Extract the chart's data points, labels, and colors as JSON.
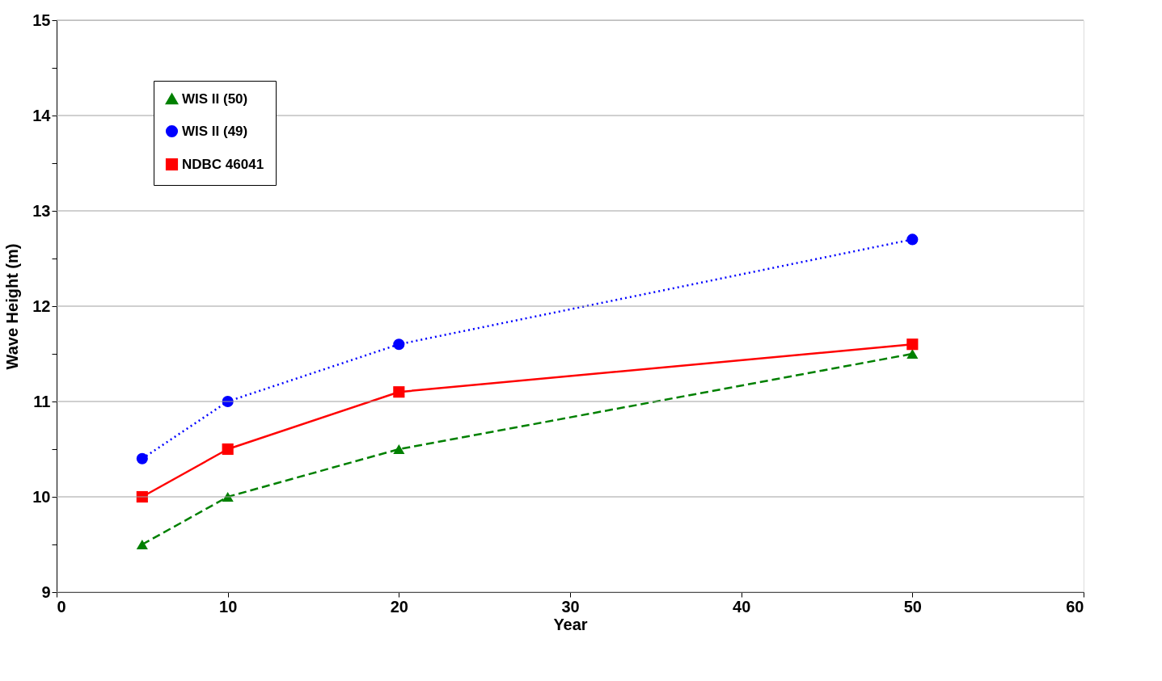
{
  "chart_data": {
    "type": "line",
    "xlabel": "Year",
    "ylabel": "Wave Height (m)",
    "xlim": [
      0,
      60
    ],
    "xticks": [
      0,
      10,
      20,
      30,
      40,
      50,
      60
    ],
    "ylim": [
      9,
      15
    ],
    "yticks": [
      9,
      {
        "value": 9.5,
        "label": null
      },
      10,
      {
        "value": 10.5,
        "label": null
      },
      11,
      {
        "value": 11.5,
        "label": null
      },
      12,
      {
        "value": 12.5,
        "label": null
      },
      13,
      {
        "value": 13.5,
        "label": null
      },
      14,
      {
        "value": 14.5,
        "label": null
      },
      15
    ],
    "grid": "y",
    "legend": "top left",
    "x": [
      5,
      10,
      20,
      50
    ],
    "series": [
      {
        "name": "WIS II (50)",
        "color": "#008000",
        "values": [
          9.5,
          10.0,
          10.5,
          11.5
        ],
        "marker": "triangle",
        "line_style": "dashed"
      },
      {
        "name": "WIS II (49)",
        "color": "#0000ff",
        "values": [
          10.4,
          11.0,
          11.6,
          12.7
        ],
        "marker": "circle",
        "line_style": "dotted"
      },
      {
        "name": "NDBC 46041",
        "color": "#ff0000",
        "values": [
          10.0,
          10.5,
          11.1,
          11.6
        ],
        "marker": "square",
        "line_style": "solid"
      }
    ]
  }
}
